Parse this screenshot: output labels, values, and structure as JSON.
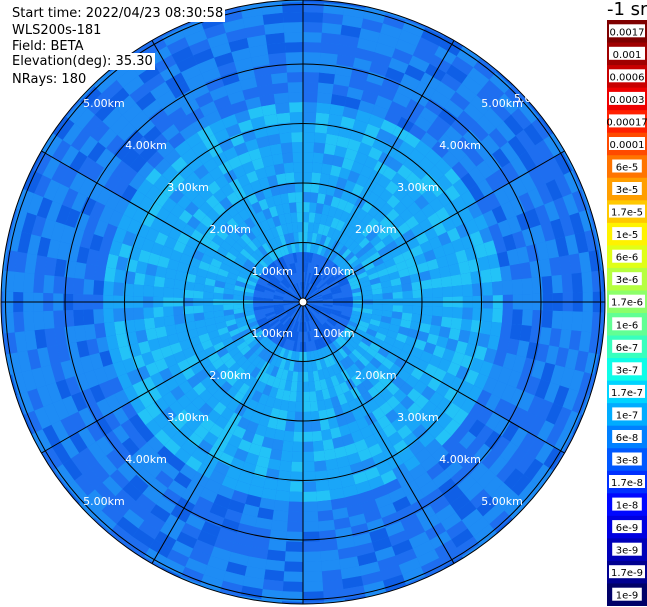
{
  "header": {
    "start_time": "Start time: 2022/04/23 08:30:58",
    "instrument": "WLS200s-181",
    "field": "Field: BETA",
    "elevation": "Elevation(deg): 35.30",
    "nrays": "NRays: 180"
  },
  "colorbar": {
    "unit": "-1 sr",
    "labels": [
      "0.0017",
      "0.001",
      "0.0006",
      "0.0003",
      "0.00017",
      "0.0001",
      "6e-5",
      "3e-5",
      "1.7e-5",
      "1e-5",
      "6e-6",
      "3e-6",
      "1.7e-6",
      "1e-6",
      "6e-7",
      "3e-7",
      "1.7e-7",
      "1e-7",
      "6e-8",
      "3e-8",
      "1.7e-8",
      "1e-8",
      "6e-9",
      "3e-9",
      "1.7e-9",
      "1e-9"
    ],
    "colors": [
      "#7f0000",
      "#a00000",
      "#c80000",
      "#ee0000",
      "#ff2000",
      "#ff4a00",
      "#ff7400",
      "#ff9e00",
      "#ffc800",
      "#fff200",
      "#e0ff16",
      "#b6ff40",
      "#8cff6a",
      "#62ff94",
      "#38ffbe",
      "#0efce8",
      "#00d4ff",
      "#00acff",
      "#0080ff",
      "#0058ff",
      "#0030ff",
      "#0008ff",
      "#0000e0",
      "#0000b8",
      "#000090",
      "#000068"
    ]
  },
  "range_labels": [
    "1.00km",
    "2.00km",
    "3.00km",
    "4.00km",
    "5.00km"
  ],
  "background_palette": [
    "#1e6ef0",
    "#1e8cf5",
    "#1aa6f8",
    "#23c3f7",
    "#0f5fe6"
  ]
}
